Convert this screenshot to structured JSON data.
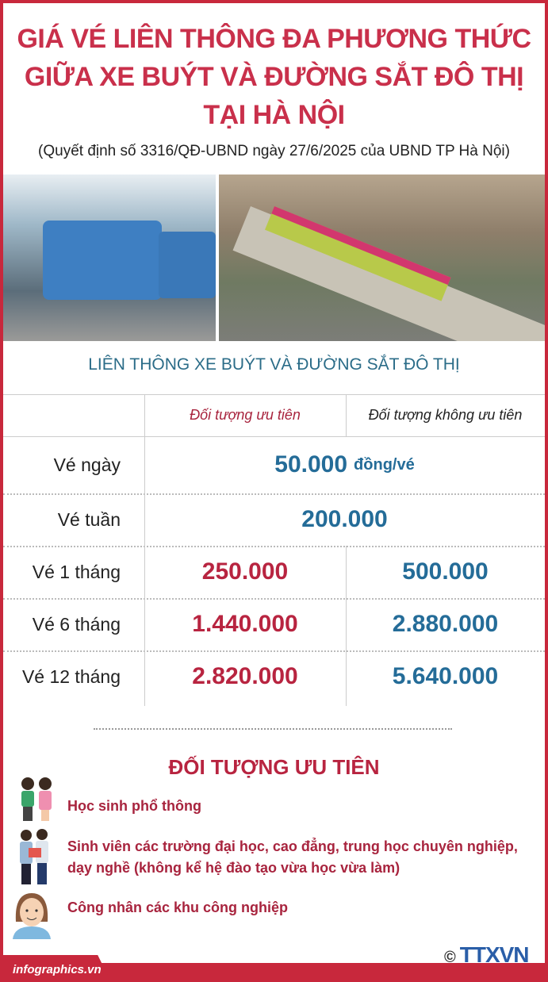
{
  "title_lines": [
    "GIÁ VÉ LIÊN THÔNG ĐA PHƯƠNG THỨC",
    "GIỮA XE BUÝT VÀ ĐƯỜNG SẮT ĐÔ THỊ",
    "TẠI HÀ NỘI"
  ],
  "subtitle": "(Quyết định số 3316/QĐ-UBND ngày 27/6/2025 của UBND TP Hà Nội)",
  "table": {
    "heading": "LIÊN THÔNG XE BUÝT VÀ ĐƯỜNG SẮT ĐÔ THỊ",
    "columns": [
      "Đối tượng ưu tiên",
      "Đối tượng không ưu tiên"
    ],
    "rows": [
      {
        "label": "Vé ngày",
        "shared": "50.000",
        "unit": "đồng/vé"
      },
      {
        "label": "Vé tuần",
        "shared": "200.000"
      },
      {
        "label": "Vé 1 tháng",
        "priority": "250.000",
        "regular": "500.000"
      },
      {
        "label": "Vé 6 tháng",
        "priority": "1.440.000",
        "regular": "2.880.000"
      },
      {
        "label": "Vé 12 tháng",
        "priority": "2.820.000",
        "regular": "5.640.000"
      }
    ]
  },
  "priority": {
    "title": "ĐỐI TƯỢNG ƯU TIÊN",
    "items": [
      {
        "icon": "students-icon",
        "text": "Học sinh phổ thông"
      },
      {
        "icon": "university-students-icon",
        "text": "Sinh viên các trường đại học, cao đẳng, trung học chuyên nghiệp,",
        "text2": "dạy nghề (không kể hệ đào tạo vừa học vừa làm)"
      },
      {
        "icon": "worker-icon",
        "text": "Công nhân các khu công nghiệp"
      }
    ]
  },
  "footer": {
    "site": "infographics.vn",
    "logo": "TTXVN",
    "copyright": "©"
  },
  "colors": {
    "red": "#c8283c",
    "title": "#c9304b",
    "blue": "#246c98"
  }
}
